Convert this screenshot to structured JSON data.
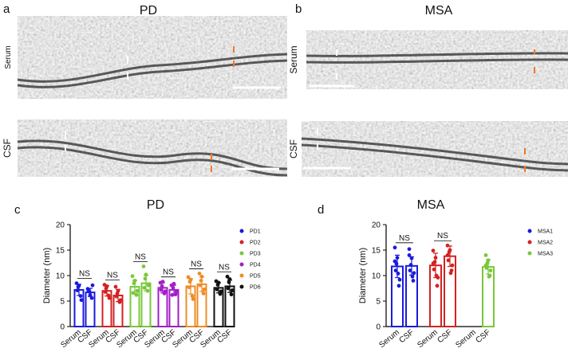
{
  "panels": {
    "a": {
      "letter": "a",
      "title": "PD",
      "rows": [
        "Serum",
        "CSF"
      ]
    },
    "b": {
      "letter": "b",
      "title": "MSA",
      "rows": [
        "Serum",
        "CSF"
      ]
    }
  },
  "chart_data": [
    {
      "type": "bar",
      "letter": "c",
      "title": "PD",
      "ylabel": "Diameter (nm)",
      "ylim": [
        0,
        20
      ],
      "yticks": [
        0,
        5,
        10,
        15,
        20
      ],
      "categories": [
        "Serum",
        "CSF"
      ],
      "groups": [
        {
          "name": "PD1",
          "color": "#1b1bdc",
          "values": [
            7.2,
            6.7
          ],
          "errors": [
            1.1,
            0.8
          ],
          "sig": "NS",
          "points": [
            [
              8.5,
              6.0,
              7.8,
              5.2,
              8.0,
              7.1
            ],
            [
              7.4,
              5.6,
              6.9,
              8.1,
              6.2,
              7.0
            ]
          ]
        },
        {
          "name": "PD2",
          "color": "#d42121",
          "values": [
            7.0,
            6.1
          ],
          "errors": [
            1.0,
            1.2
          ],
          "sig": "NS",
          "points": [
            [
              8.2,
              6.1,
              7.5,
              5.6,
              7.9,
              6.8
            ],
            [
              7.8,
              4.8,
              6.5,
              5.2,
              7.0,
              5.9
            ]
          ]
        },
        {
          "name": "PD3",
          "color": "#78c83a",
          "values": [
            7.8,
            8.5
          ],
          "errors": [
            1.3,
            1.5
          ],
          "sig": "NS",
          "points": [
            [
              9.9,
              6.2,
              8.5,
              7.0,
              9.0,
              6.6
            ],
            [
              11.8,
              7.0,
              9.4,
              8.1,
              10.2,
              7.6
            ]
          ]
        },
        {
          "name": "PD4",
          "color": "#a21fc8",
          "values": [
            7.6,
            7.2
          ],
          "errors": [
            1.0,
            0.9
          ],
          "sig": "NS",
          "points": [
            [
              8.6,
              6.5,
              7.9,
              6.9,
              8.8,
              7.2
            ],
            [
              8.1,
              6.3,
              7.6,
              6.8,
              8.4,
              6.2
            ]
          ]
        },
        {
          "name": "PD5",
          "color": "#f08b25",
          "values": [
            7.9,
            8.3
          ],
          "errors": [
            1.5,
            1.4
          ],
          "sig": "NS",
          "points": [
            [
              9.7,
              6.0,
              8.8,
              5.4,
              9.2,
              7.7
            ],
            [
              10.4,
              6.5,
              9.0,
              7.3,
              9.8,
              8.1
            ]
          ]
        },
        {
          "name": "PD6",
          "color": "#111111",
          "values": [
            7.6,
            7.9
          ],
          "errors": [
            1.0,
            1.2
          ],
          "sig": "NS",
          "points": [
            [
              8.9,
              6.4,
              8.2,
              6.9,
              8.6,
              7.3
            ],
            [
              9.8,
              6.3,
              8.7,
              7.1,
              9.3,
              7.5
            ]
          ]
        }
      ]
    },
    {
      "type": "bar",
      "letter": "d",
      "title": "MSA",
      "ylabel": "Diameter (nm)",
      "ylim": [
        0,
        20
      ],
      "yticks": [
        0,
        5,
        10,
        15,
        20
      ],
      "categories": [
        "Serum",
        "CSF"
      ],
      "groups": [
        {
          "name": "MSA1",
          "color": "#1b1bdc",
          "values": [
            11.8,
            11.9
          ],
          "errors": [
            2.2,
            1.8
          ],
          "sig": "NS",
          "points": [
            [
              15.5,
              8.0,
              12.3,
              9.2,
              13.5,
              11.0,
              10.4,
              12.8
            ],
            [
              15.2,
              9.0,
              12.1,
              10.5,
              13.4,
              11.0,
              9.8,
              14.0
            ]
          ]
        },
        {
          "name": "MSA2",
          "color": "#d42121",
          "values": [
            12.0,
            13.8
          ],
          "errors": [
            2.4,
            2.0
          ],
          "sig": "NS",
          "points": [
            [
              14.9,
              8.0,
              12.7,
              9.6,
              13.5,
              11.2,
              10.0,
              12.4
            ],
            [
              15.9,
              11.0,
              14.6,
              12.0,
              15.0,
              13.0,
              10.5,
              14.0
            ]
          ]
        },
        {
          "name": "MSA3",
          "color": "#78c83a",
          "values": [
            null,
            11.7
          ],
          "errors": [
            null,
            1.4
          ],
          "points": [
            [],
            [
              14.0,
              10.0,
              12.5,
              11.0,
              13.0,
              11.5,
              9.8,
              12.0
            ]
          ]
        }
      ]
    }
  ]
}
